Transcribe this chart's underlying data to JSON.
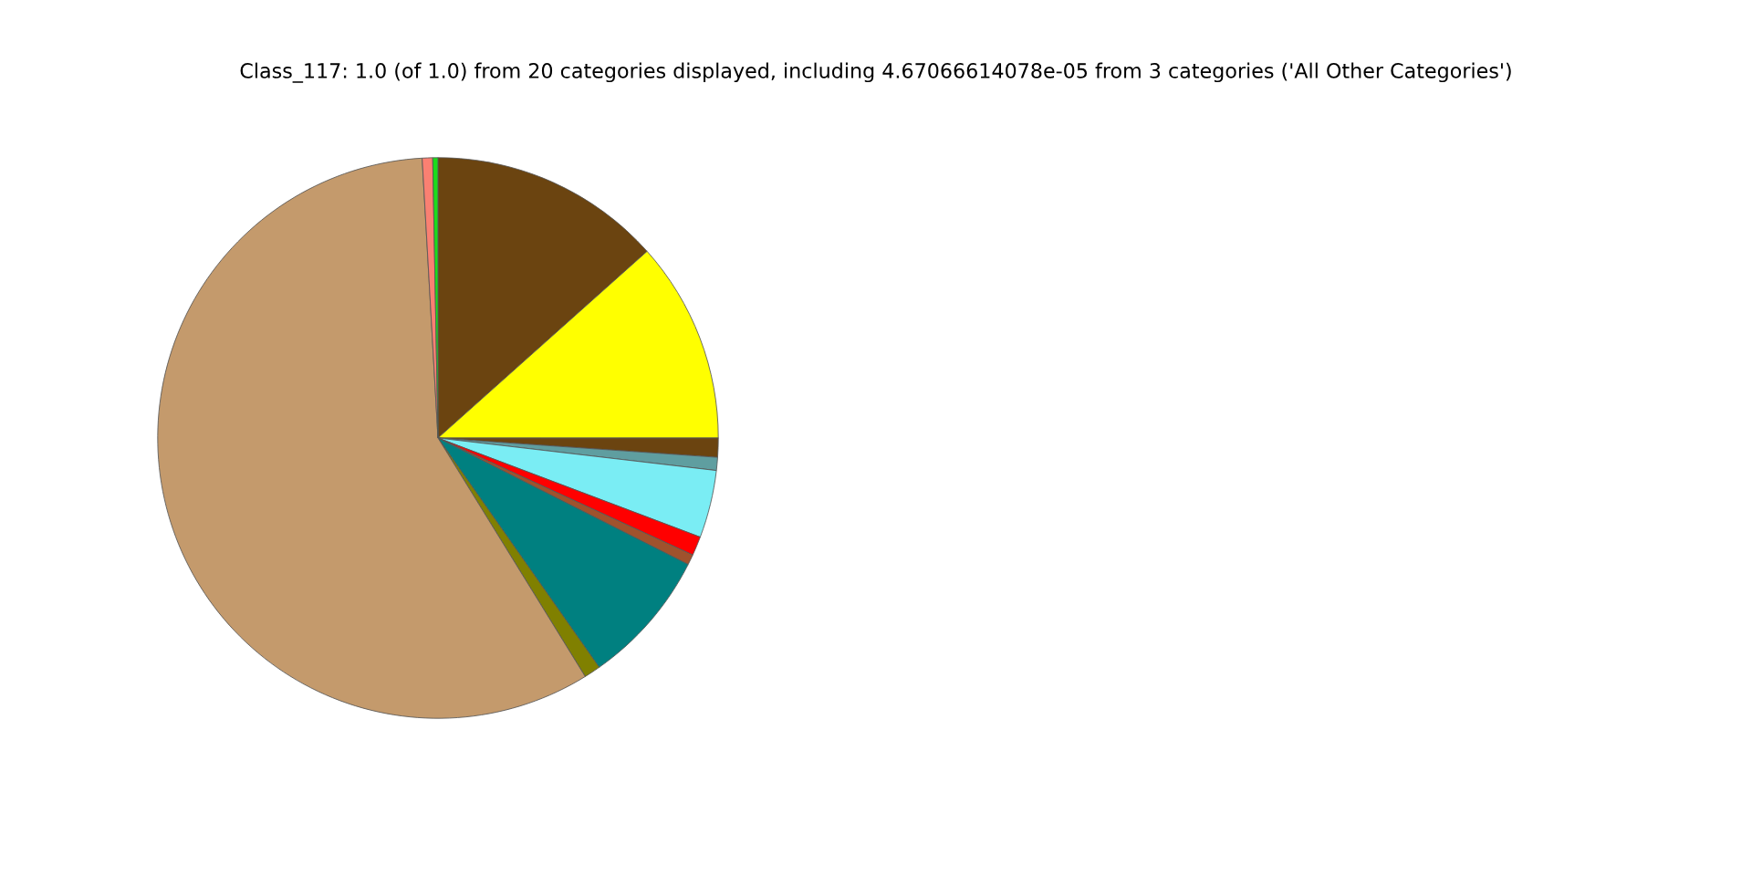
{
  "chart_data": {
    "type": "pie",
    "title": "Class_117: 1.0 (of 1.0) from 20 categories displayed, including 4.67066614078e-05 from 3 categories ('All Other Categories')",
    "categories": [
      null,
      null,
      null,
      null,
      null,
      null,
      null,
      null,
      null,
      null,
      null,
      null
    ],
    "values": [
      13.4,
      11.6,
      1.1,
      0.75,
      3.9,
      1.1,
      0.6,
      7.8,
      0.95,
      57.9,
      0.6,
      0.3
    ],
    "colors": [
      "#6b4410",
      "#ffff00",
      "#6b4410",
      "#5f9ea0",
      "#7aedf4",
      "#ff0000",
      "#a0522d",
      "#008080",
      "#808000",
      "#c49a6c",
      "#fa8072",
      "#1bdc1b"
    ]
  }
}
